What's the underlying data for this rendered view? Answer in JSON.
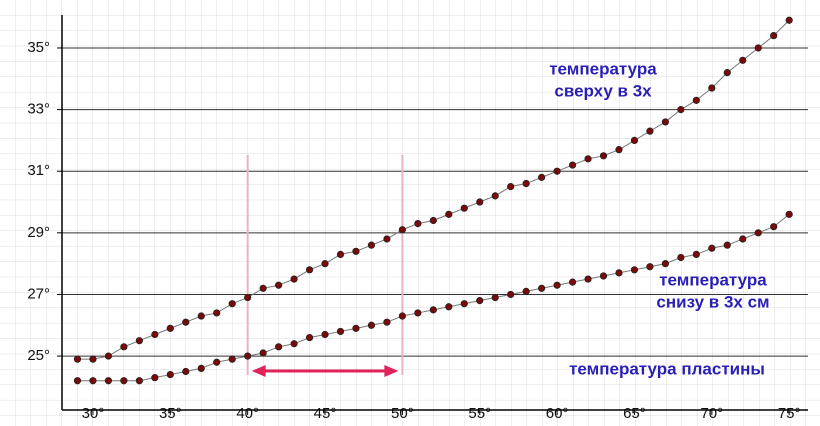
{
  "chart_data": {
    "type": "line",
    "x": [
      29,
      30,
      31,
      32,
      33,
      34,
      35,
      36,
      37,
      38,
      39,
      40,
      41,
      42,
      43,
      44,
      45,
      46,
      47,
      48,
      49,
      50,
      51,
      52,
      53,
      54,
      55,
      56,
      57,
      58,
      59,
      60,
      61,
      62,
      63,
      64,
      65,
      66,
      67,
      68,
      69,
      70,
      71,
      72,
      73,
      74,
      75
    ],
    "series": [
      {
        "color": "#7a0a0a",
        "values": [
          24.9,
          24.9,
          25.0,
          25.3,
          25.5,
          25.7,
          25.9,
          26.1,
          26.3,
          26.4,
          26.7,
          26.9,
          27.2,
          27.3,
          27.5,
          27.8,
          28.0,
          28.3,
          28.4,
          28.6,
          28.8,
          29.1,
          29.3,
          29.4,
          29.6,
          29.8,
          30.0,
          30.2,
          30.5,
          30.6,
          30.8,
          31.0,
          31.2,
          31.4,
          31.5,
          31.7,
          32.0,
          32.3,
          32.6,
          33.0,
          33.3,
          33.7,
          34.2,
          34.6,
          35.0,
          35.4,
          35.9
        ]
      },
      {
        "color": "#7a0a0a",
        "values": [
          24.2,
          24.2,
          24.2,
          24.2,
          24.2,
          24.3,
          24.4,
          24.5,
          24.6,
          24.8,
          24.9,
          25.0,
          25.1,
          25.3,
          25.4,
          25.6,
          25.7,
          25.8,
          25.9,
          26.0,
          26.1,
          26.3,
          26.4,
          26.5,
          26.6,
          26.7,
          26.8,
          26.9,
          27.0,
          27.1,
          27.2,
          27.3,
          27.4,
          27.5,
          27.6,
          27.7,
          27.8,
          27.9,
          28.0,
          28.2,
          28.3,
          28.5,
          28.6,
          28.8,
          29.0,
          29.2,
          29.6
        ]
      }
    ],
    "annotations": [
      [
        "температура",
        "сверху в 3х"
      ],
      [
        "температура",
        "снизу в 3х см"
      ],
      [
        "температура пластины"
      ]
    ],
    "vlines": [
      40,
      50
    ],
    "xlim": [
      28,
      75.7
    ],
    "ylim": [
      23.25,
      36.07
    ],
    "xticks": [
      {
        "value": 30,
        "label": "30°"
      },
      {
        "value": 35,
        "label": "35°"
      },
      {
        "value": 40,
        "label": "40°"
      },
      {
        "value": 45,
        "label": "45°"
      },
      {
        "value": 50,
        "label": "50°"
      },
      {
        "value": 55,
        "label": "55°"
      },
      {
        "value": 60,
        "label": "60°"
      },
      {
        "value": 65,
        "label": "65°"
      },
      {
        "value": 70,
        "label": "70°"
      },
      {
        "value": 75,
        "label": "75°"
      }
    ],
    "yticks": [
      {
        "value": 25,
        "label": "25°"
      },
      {
        "value": 27,
        "label": "27°"
      },
      {
        "value": 29,
        "label": "29°"
      },
      {
        "value": 31,
        "label": "31°"
      },
      {
        "value": 33,
        "label": "33°"
      },
      {
        "value": 35,
        "label": "35°"
      }
    ],
    "grid": true
  }
}
